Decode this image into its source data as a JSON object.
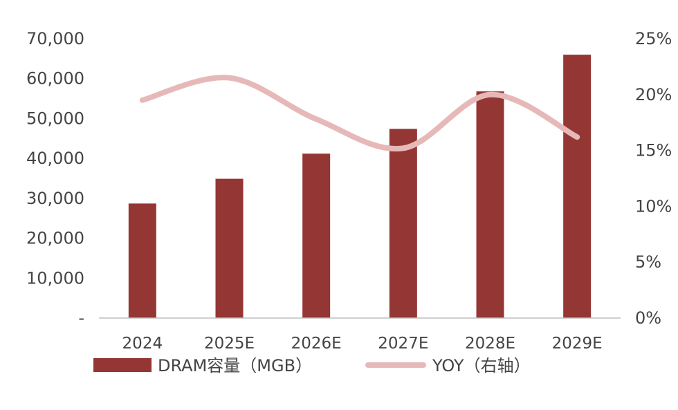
{
  "chart_data": {
    "type": "bar",
    "categories": [
      "2024",
      "2025E",
      "2026E",
      "2027E",
      "2028E",
      "2029E"
    ],
    "series": [
      {
        "name": "DRAM容量（MGB）",
        "type": "bar",
        "axis": "left",
        "color": "#943634",
        "values": [
          28700,
          34900,
          41200,
          47400,
          56800,
          66000
        ]
      },
      {
        "name": "YOY（右轴）",
        "type": "line",
        "axis": "right",
        "color": "#e6b9b8",
        "values": [
          0.195,
          0.215,
          0.178,
          0.152,
          0.2,
          0.162
        ]
      }
    ],
    "y_left": {
      "ylim": [
        0,
        70000
      ],
      "ticks": [
        0,
        10000,
        20000,
        30000,
        40000,
        50000,
        60000,
        70000
      ],
      "tick_labels": [
        "-",
        "10,000",
        "20,000",
        "30,000",
        "40,000",
        "50,000",
        "60,000",
        "70,000"
      ]
    },
    "y_right": {
      "ylim": [
        0,
        0.25
      ],
      "ticks": [
        0,
        0.05,
        0.1,
        0.15,
        0.2,
        0.25
      ],
      "tick_labels": [
        "0%",
        "5%",
        "10%",
        "15%",
        "20%",
        "25%"
      ]
    },
    "grid": false,
    "legend_position": "bottom"
  },
  "legend": {
    "bar_label": "DRAM容量（MGB）",
    "line_label": "YOY（右轴）"
  }
}
